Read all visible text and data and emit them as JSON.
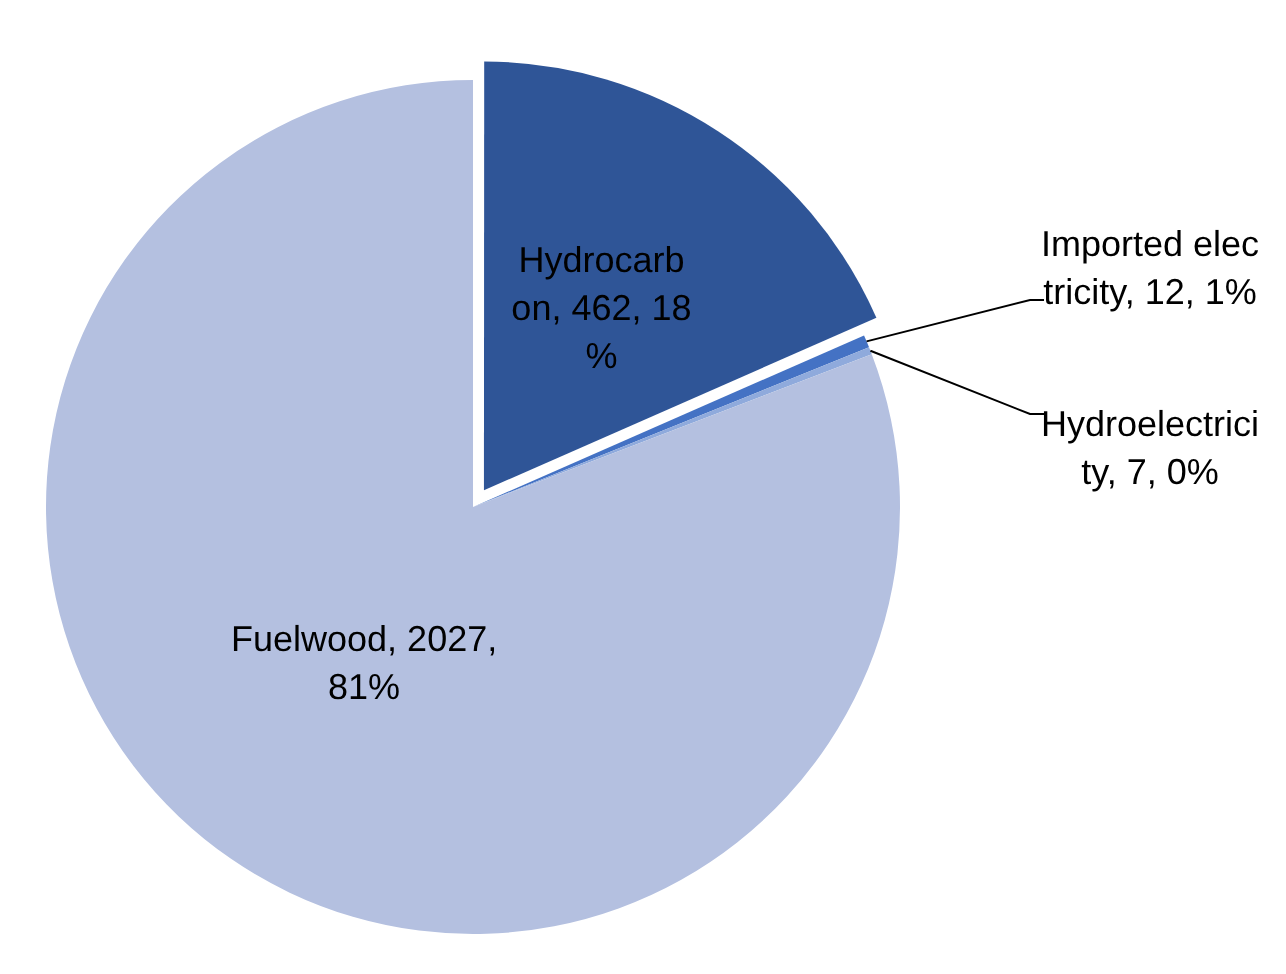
{
  "chart_data": {
    "type": "pie",
    "categories": [
      "Hydrocarbon",
      "Imported electricity",
      "Hydroelectricity",
      "Fuelwood"
    ],
    "values": [
      462,
      12,
      7,
      2027
    ],
    "colors": [
      "#2f5597",
      "#4472c4",
      "#8faadc",
      "#b4c0e0"
    ],
    "value_labels": [
      "462, 18%",
      "12, 1%",
      "7, 0%",
      "2027, 81%"
    ],
    "data_labels": true,
    "legend": false
  }
}
